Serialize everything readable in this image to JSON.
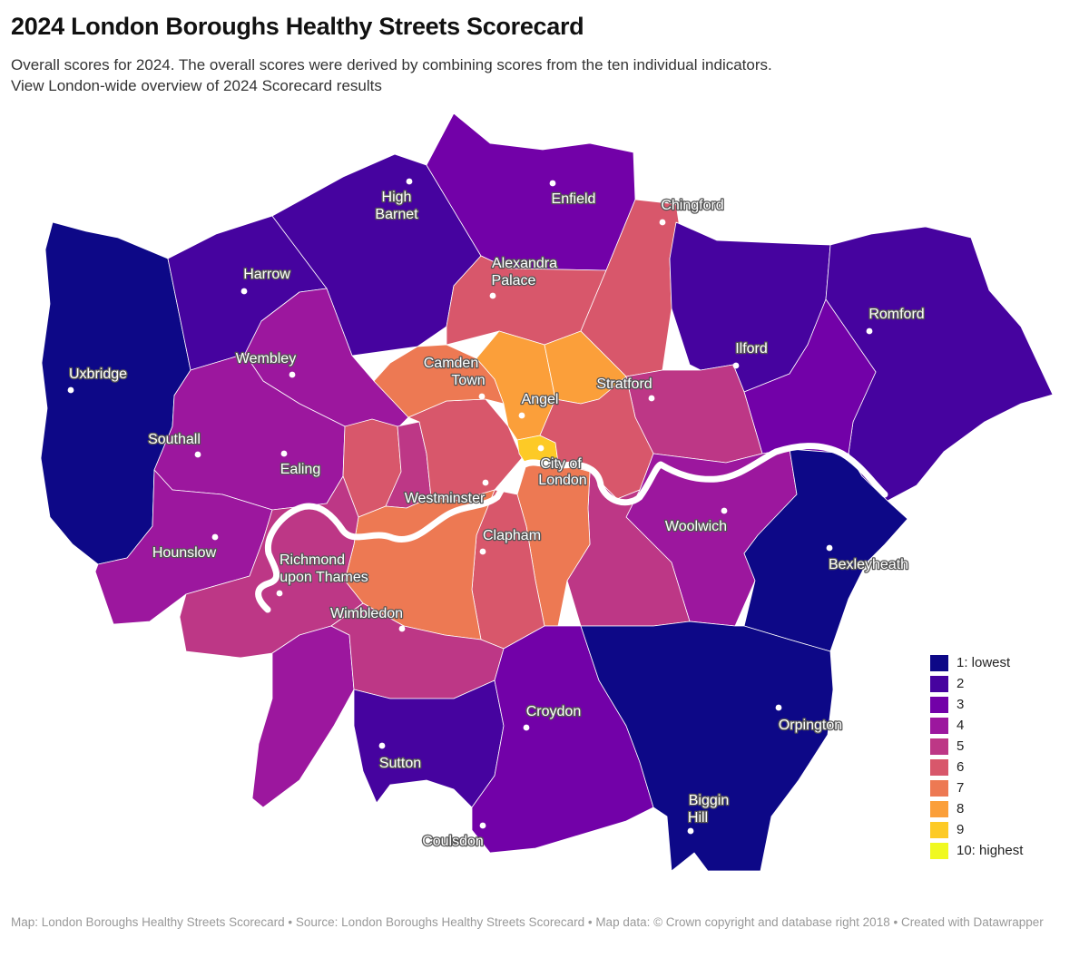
{
  "header": {
    "title": "2024 London Boroughs Healthy Streets Scorecard",
    "subtitle": "Overall scores for 2024. The overall scores were derived by combining scores from the ten individual indicators.",
    "link_text": "View London-wide overview of 2024 Scorecard results"
  },
  "colors": {
    "s1": "#0d0887",
    "s2": "#46039f",
    "s3": "#7201a8",
    "s4": "#9c179e",
    "s5": "#bd3786",
    "s6": "#d8576b",
    "s7": "#ed7953",
    "s8": "#fb9f3a",
    "s9": "#fdca26",
    "s10": "#f0f921",
    "river": "#ffffff"
  },
  "legend": {
    "items": [
      {
        "label": "1: lowest",
        "color": "#0d0887"
      },
      {
        "label": "2",
        "color": "#46039f"
      },
      {
        "label": "3",
        "color": "#7201a8"
      },
      {
        "label": "4",
        "color": "#9c179e"
      },
      {
        "label": "5",
        "color": "#bd3786"
      },
      {
        "label": "6",
        "color": "#d8576b"
      },
      {
        "label": "7",
        "color": "#ed7953"
      },
      {
        "label": "8",
        "color": "#fb9f3a"
      },
      {
        "label": "9",
        "color": "#fdca26"
      },
      {
        "label": "10: highest",
        "color": "#f0f921"
      }
    ]
  },
  "places": {
    "high_barnet": [
      "High",
      "Barnet"
    ],
    "enfield": "Enfield",
    "chingford": "Chingford",
    "harrow": "Harrow",
    "alexandra_palace": [
      "Alexandra",
      "Palace"
    ],
    "romford": "Romford",
    "wembley": "Wembley",
    "ilford": "Ilford",
    "uxbridge": "Uxbridge",
    "camden_town": [
      "Camden",
      "Town"
    ],
    "angel": "Angel",
    "stratford": "Stratford",
    "southall": "Southall",
    "ealing": "Ealing",
    "city_of_london": [
      "City of",
      "London"
    ],
    "westminster": "Westminster",
    "clapham": "Clapham",
    "woolwich": "Woolwich",
    "hounslow": "Hounslow",
    "richmond": [
      "Richmond",
      "upon Thames"
    ],
    "bexleyheath": "Bexleyheath",
    "wimbledon": "Wimbledon",
    "croydon": "Croydon",
    "orpington": "Orpington",
    "sutton": "Sutton",
    "biggin_hill": [
      "Biggin",
      "Hill"
    ],
    "coulsdon": "Coulsdon"
  },
  "footer": {
    "text": "Map: London Boroughs Healthy Streets Scorecard • Source: London Boroughs Healthy Streets Scorecard • Map data: © Crown copyright and database right 2018 • Created with Datawrapper"
  }
}
